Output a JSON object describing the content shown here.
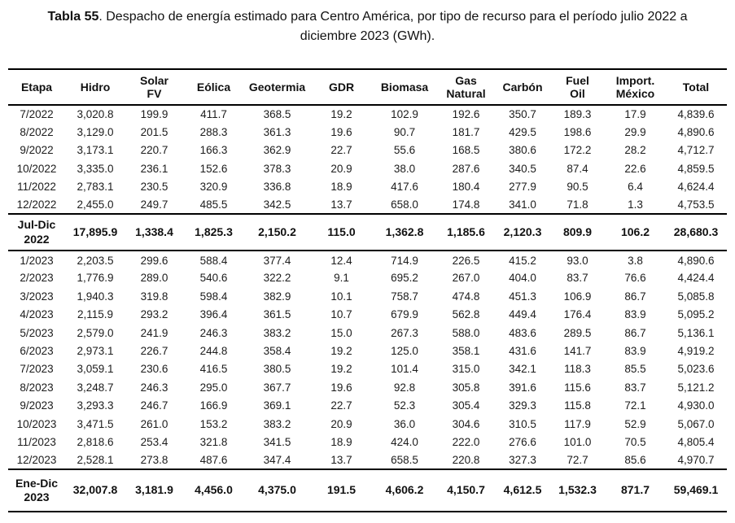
{
  "title": {
    "label": "Tabla 55",
    "text": ". Despacho de energía estimado para Centro América, por tipo de recurso para el período julio 2022 a diciembre 2023 (GWh)."
  },
  "table": {
    "columns": [
      "Etapa",
      "Hidro",
      "Solar\nFV",
      "Eólica",
      "Geotermia",
      "GDR",
      "Biomasa",
      "Gas\nNatural",
      "Carbón",
      "Fuel\nOil",
      "Import.\nMéxico",
      "Total"
    ],
    "rows": [
      {
        "etapa": "7/2022",
        "summary": false,
        "values": [
          "3,020.8",
          "199.9",
          "411.7",
          "368.5",
          "19.2",
          "102.9",
          "192.6",
          "350.7",
          "189.3",
          "17.9",
          "4,839.6"
        ]
      },
      {
        "etapa": "8/2022",
        "summary": false,
        "values": [
          "3,129.0",
          "201.5",
          "288.3",
          "361.3",
          "19.6",
          "90.7",
          "181.7",
          "429.5",
          "198.6",
          "29.9",
          "4,890.6"
        ]
      },
      {
        "etapa": "9/2022",
        "summary": false,
        "values": [
          "3,173.1",
          "220.7",
          "166.3",
          "362.9",
          "22.7",
          "55.6",
          "168.5",
          "380.6",
          "172.2",
          "28.2",
          "4,712.7"
        ]
      },
      {
        "etapa": "10/2022",
        "summary": false,
        "values": [
          "3,335.0",
          "236.1",
          "152.6",
          "378.3",
          "20.9",
          "38.0",
          "287.6",
          "340.5",
          "87.4",
          "22.6",
          "4,859.5"
        ]
      },
      {
        "etapa": "11/2022",
        "summary": false,
        "values": [
          "2,783.1",
          "230.5",
          "320.9",
          "336.8",
          "18.9",
          "417.6",
          "180.4",
          "277.9",
          "90.5",
          "6.4",
          "4,624.4"
        ]
      },
      {
        "etapa": "12/2022",
        "summary": false,
        "values": [
          "2,455.0",
          "249.7",
          "485.5",
          "342.5",
          "13.7",
          "658.0",
          "174.8",
          "341.0",
          "71.8",
          "1.3",
          "4,753.5"
        ]
      },
      {
        "etapa": "Jul-Dic 2022",
        "summary": true,
        "values": [
          "17,895.9",
          "1,338.4",
          "1,825.3",
          "2,150.2",
          "115.0",
          "1,362.8",
          "1,185.6",
          "2,120.3",
          "809.9",
          "106.2",
          "28,680.3"
        ]
      },
      {
        "etapa": "1/2023",
        "summary": false,
        "values": [
          "2,203.5",
          "299.6",
          "588.4",
          "377.4",
          "12.4",
          "714.9",
          "226.5",
          "415.2",
          "93.0",
          "3.8",
          "4,890.6"
        ]
      },
      {
        "etapa": "2/2023",
        "summary": false,
        "values": [
          "1,776.9",
          "289.0",
          "540.6",
          "322.2",
          "9.1",
          "695.2",
          "267.0",
          "404.0",
          "83.7",
          "76.6",
          "4,424.4"
        ]
      },
      {
        "etapa": "3/2023",
        "summary": false,
        "values": [
          "1,940.3",
          "319.8",
          "598.4",
          "382.9",
          "10.1",
          "758.7",
          "474.8",
          "451.3",
          "106.9",
          "86.7",
          "5,085.8"
        ]
      },
      {
        "etapa": "4/2023",
        "summary": false,
        "values": [
          "2,115.9",
          "293.2",
          "396.4",
          "361.5",
          "10.7",
          "679.9",
          "562.8",
          "449.4",
          "176.4",
          "83.9",
          "5,095.2"
        ]
      },
      {
        "etapa": "5/2023",
        "summary": false,
        "values": [
          "2,579.0",
          "241.9",
          "246.3",
          "383.2",
          "15.0",
          "267.3",
          "588.0",
          "483.6",
          "289.5",
          "86.7",
          "5,136.1"
        ]
      },
      {
        "etapa": "6/2023",
        "summary": false,
        "values": [
          "2,973.1",
          "226.7",
          "244.8",
          "358.4",
          "19.2",
          "125.0",
          "358.1",
          "431.6",
          "141.7",
          "83.9",
          "4,919.2"
        ]
      },
      {
        "etapa": "7/2023",
        "summary": false,
        "values": [
          "3,059.1",
          "230.6",
          "416.5",
          "380.5",
          "19.2",
          "101.4",
          "315.0",
          "342.1",
          "118.3",
          "85.5",
          "5,023.6"
        ]
      },
      {
        "etapa": "8/2023",
        "summary": false,
        "values": [
          "3,248.7",
          "246.3",
          "295.0",
          "367.7",
          "19.6",
          "92.8",
          "305.8",
          "391.6",
          "115.6",
          "83.7",
          "5,121.2"
        ]
      },
      {
        "etapa": "9/2023",
        "summary": false,
        "values": [
          "3,293.3",
          "246.7",
          "166.9",
          "369.1",
          "22.7",
          "52.3",
          "305.4",
          "329.3",
          "115.8",
          "72.1",
          "4,930.0"
        ]
      },
      {
        "etapa": "10/2023",
        "summary": false,
        "values": [
          "3,471.5",
          "261.0",
          "153.2",
          "383.2",
          "20.9",
          "36.0",
          "304.6",
          "310.5",
          "117.9",
          "52.9",
          "5,067.0"
        ]
      },
      {
        "etapa": "11/2023",
        "summary": false,
        "values": [
          "2,818.6",
          "253.4",
          "321.8",
          "341.5",
          "18.9",
          "424.0",
          "222.0",
          "276.6",
          "101.0",
          "70.5",
          "4,805.4"
        ]
      },
      {
        "etapa": "12/2023",
        "summary": false,
        "values": [
          "2,528.1",
          "273.8",
          "487.6",
          "347.4",
          "13.7",
          "658.5",
          "220.8",
          "327.3",
          "72.7",
          "85.6",
          "4,970.7"
        ]
      },
      {
        "etapa": "Ene-Dic 2023",
        "summary": true,
        "values": [
          "32,007.8",
          "3,181.9",
          "4,456.0",
          "4,375.0",
          "191.5",
          "4,606.2",
          "4,150.7",
          "4,612.5",
          "1,532.3",
          "871.7",
          "59,469.1"
        ]
      }
    ]
  }
}
